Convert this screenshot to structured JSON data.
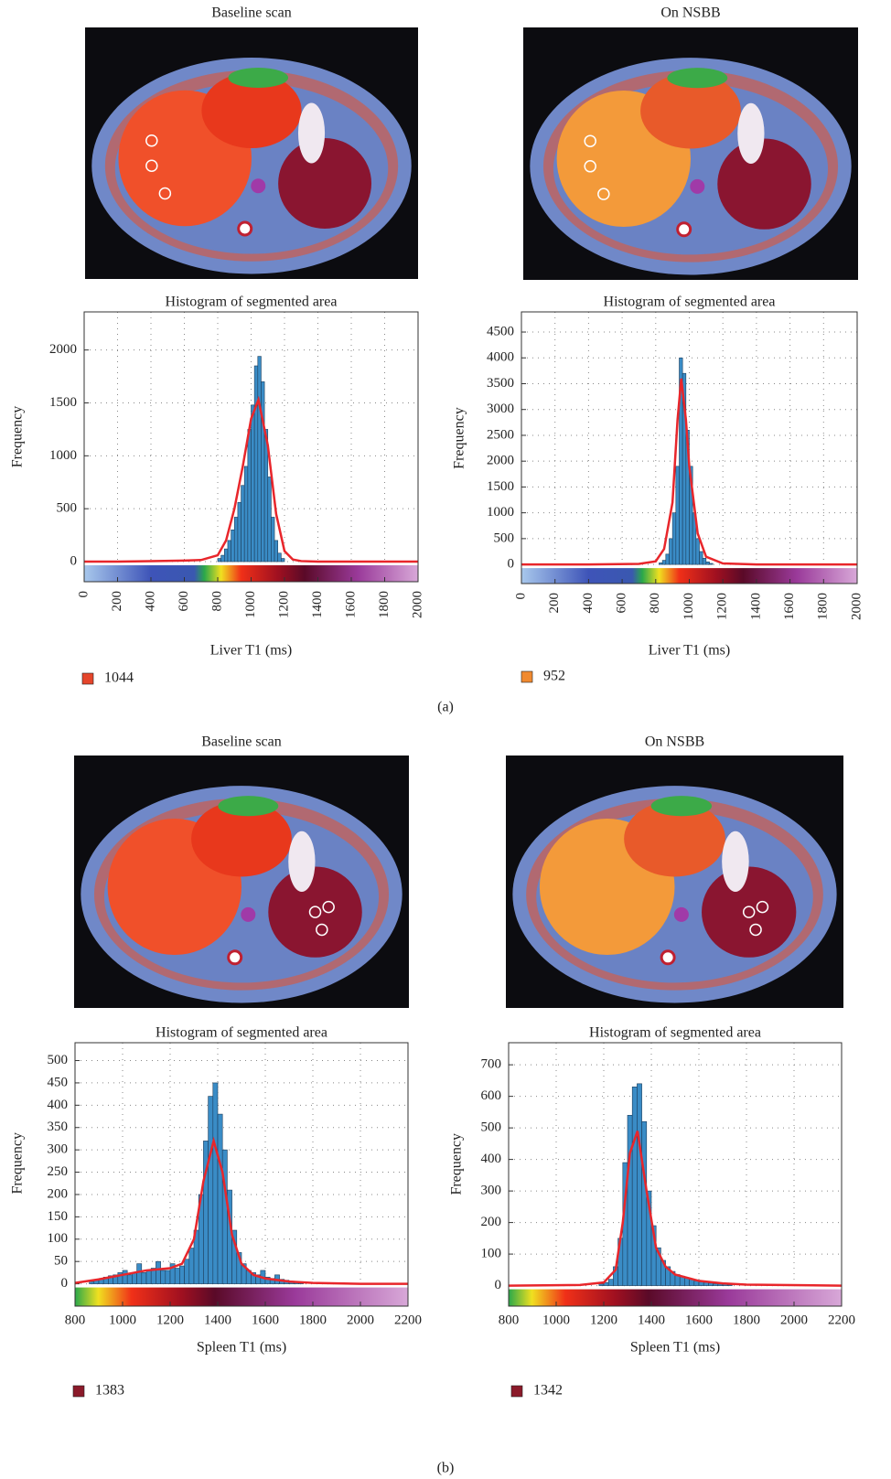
{
  "panel_labels": [
    "(a)",
    "(b)"
  ],
  "chart_data": [
    {
      "type": "histogram",
      "image_title": "Baseline scan",
      "title": "Histogram of segmented area",
      "xlabel": "Liver T1 (ms)",
      "ylabel": "Frequency",
      "bins": [
        800,
        820,
        840,
        860,
        880,
        900,
        920,
        940,
        960,
        980,
        1000,
        1020,
        1040,
        1060,
        1080,
        1100,
        1120,
        1140,
        1160,
        1180,
        1200
      ],
      "values": [
        30,
        60,
        120,
        200,
        300,
        420,
        560,
        720,
        900,
        1250,
        1480,
        1850,
        1940,
        1700,
        1250,
        800,
        420,
        200,
        80,
        30
      ],
      "color": "#3a8cc6",
      "fit": {
        "color": "#e8262b",
        "x": [
          0,
          200,
          400,
          600,
          700,
          800,
          850,
          900,
          950,
          1000,
          1044,
          1100,
          1150,
          1200,
          1250,
          1300,
          1400,
          2000
        ],
        "values": [
          0,
          0,
          5,
          10,
          15,
          60,
          200,
          500,
          900,
          1350,
          1530,
          1100,
          450,
          100,
          20,
          5,
          0,
          0
        ]
      },
      "xlim": [
        0,
        2000
      ],
      "ylim": [
        -190,
        2360
      ],
      "xticks": [
        0,
        200,
        400,
        600,
        800,
        1000,
        1200,
        1400,
        1600,
        1800,
        2000
      ],
      "yticks": [
        0,
        500,
        1000,
        1500,
        2000
      ],
      "grid": true,
      "legend": {
        "label": "1044",
        "color": "#e5452b"
      }
    },
    {
      "type": "histogram",
      "image_title": "On NSBB",
      "title": "Histogram of segmented area",
      "xlabel": "Liver T1 (ms)",
      "ylabel": "Frequency",
      "bins": [
        820,
        840,
        860,
        880,
        900,
        920,
        940,
        960,
        980,
        1000,
        1020,
        1040,
        1060,
        1080,
        1100,
        1120,
        1140
      ],
      "values": [
        30,
        80,
        200,
        500,
        1000,
        1900,
        4000,
        3700,
        2600,
        1900,
        1000,
        500,
        250,
        120,
        50,
        20
      ],
      "color": "#3a8cc6",
      "fit": {
        "color": "#e8262b",
        "x": [
          0,
          400,
          700,
          800,
          850,
          900,
          930,
          952,
          980,
          1000,
          1050,
          1100,
          1200,
          1400,
          2000
        ],
        "values": [
          0,
          0,
          10,
          60,
          300,
          1200,
          2800,
          3600,
          2800,
          1900,
          600,
          150,
          20,
          0,
          0
        ]
      },
      "xlim": [
        0,
        2000
      ],
      "ylim": [
        -370,
        4890
      ],
      "xticks": [
        0,
        200,
        400,
        600,
        800,
        1000,
        1200,
        1400,
        1600,
        1800,
        2000
      ],
      "yticks": [
        0,
        500,
        1000,
        1500,
        2000,
        2500,
        3000,
        3500,
        4000,
        4500
      ],
      "grid": true,
      "legend": {
        "label": "952",
        "color": "#f08a30"
      }
    },
    {
      "type": "histogram",
      "image_title": "Baseline scan",
      "title": "Histogram of segmented area",
      "xlabel": "Spleen T1 (ms)",
      "ylabel": "Frequency",
      "bins": [
        860,
        880,
        900,
        920,
        940,
        960,
        980,
        1000,
        1020,
        1040,
        1060,
        1080,
        1100,
        1120,
        1140,
        1160,
        1180,
        1200,
        1220,
        1240,
        1260,
        1280,
        1300,
        1320,
        1340,
        1360,
        1380,
        1400,
        1420,
        1440,
        1460,
        1480,
        1500,
        1520,
        1540,
        1560,
        1580,
        1600,
        1620,
        1640,
        1660,
        1680,
        1700,
        1720,
        1740,
        1760
      ],
      "values": [
        5,
        8,
        12,
        15,
        18,
        20,
        25,
        30,
        20,
        25,
        45,
        25,
        30,
        35,
        50,
        30,
        30,
        45,
        35,
        40,
        55,
        80,
        120,
        200,
        320,
        420,
        450,
        380,
        300,
        210,
        120,
        70,
        45,
        30,
        25,
        20,
        30,
        15,
        12,
        20,
        10,
        8,
        6,
        5,
        4
      ],
      "color": "#3a8cc6",
      "fit": {
        "color": "#e8262b",
        "x": [
          800,
          900,
          1000,
          1100,
          1200,
          1250,
          1300,
          1340,
          1383,
          1420,
          1460,
          1500,
          1550,
          1600,
          1700,
          1800,
          2000,
          2200
        ],
        "values": [
          2,
          10,
          20,
          30,
          35,
          45,
          100,
          230,
          320,
          250,
          110,
          45,
          20,
          12,
          5,
          2,
          0,
          0
        ]
      },
      "xlim": [
        800,
        2200
      ],
      "ylim": [
        -50,
        540
      ],
      "xticks": [
        800,
        1000,
        1200,
        1400,
        1600,
        1800,
        2000,
        2200
      ],
      "yticks": [
        0,
        50,
        100,
        150,
        200,
        250,
        300,
        350,
        400,
        450,
        500
      ],
      "grid": true,
      "legend": {
        "label": "1383",
        "color": "#8b1a2a"
      }
    },
    {
      "type": "histogram",
      "image_title": "On NSBB",
      "title": "Histogram of segmented area",
      "xlabel": "Spleen T1 (ms)",
      "ylabel": "Frequency",
      "bins": [
        1180,
        1200,
        1220,
        1240,
        1260,
        1280,
        1300,
        1320,
        1340,
        1360,
        1380,
        1400,
        1420,
        1440,
        1460,
        1480,
        1500,
        1520,
        1540,
        1560,
        1580,
        1600,
        1620,
        1640,
        1660,
        1680,
        1700,
        1720,
        1740
      ],
      "values": [
        5,
        10,
        20,
        60,
        150,
        390,
        540,
        630,
        640,
        520,
        300,
        190,
        120,
        80,
        60,
        45,
        35,
        30,
        25,
        20,
        15,
        12,
        10,
        8,
        6,
        5,
        4,
        3
      ],
      "color": "#3a8cc6",
      "fit": {
        "color": "#e8262b",
        "x": [
          800,
          1100,
          1200,
          1250,
          1280,
          1310,
          1342,
          1380,
          1420,
          1460,
          1500,
          1600,
          1700,
          1800,
          2200
        ],
        "values": [
          0,
          2,
          10,
          50,
          200,
          420,
          490,
          300,
          120,
          60,
          35,
          15,
          7,
          3,
          0
        ]
      },
      "xlim": [
        800,
        2200
      ],
      "ylim": [
        -65,
        770
      ],
      "xticks": [
        800,
        1000,
        1200,
        1400,
        1600,
        1800,
        2000,
        2200
      ],
      "yticks": [
        0,
        100,
        200,
        300,
        400,
        500,
        600,
        700
      ],
      "grid": true,
      "legend": {
        "label": "1342",
        "color": "#8b1a2a"
      }
    }
  ]
}
